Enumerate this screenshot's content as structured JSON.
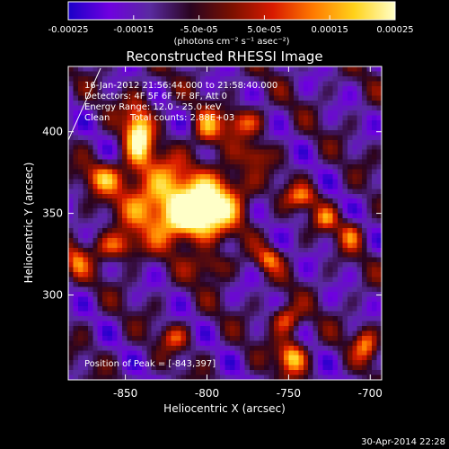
{
  "colors": {
    "background": "#000000",
    "text": "#ffffff",
    "colormap": [
      "#1a00c8",
      "#6f00e0",
      "#5a2aa0",
      "#2a0420",
      "#7a1000",
      "#d81a00",
      "#ff7a00",
      "#ffd21a",
      "#ffffc8"
    ]
  },
  "colorbar": {
    "tick_labels": [
      "-0.00025",
      "-0.00015",
      "-5.0e-05",
      "5.0e-05",
      "0.00015",
      "0.00025"
    ],
    "unit_label": "(photons cm⁻² s⁻¹ asec⁻²)",
    "range": [
      -0.00025,
      0.00025
    ]
  },
  "chart_data": {
    "type": "heatmap",
    "title": "Reconstructed RHESSI Image",
    "xlabel": "Heliocentric X (arcsec)",
    "ylabel": "Heliocentric Y (arcsec)",
    "xlim": [
      -885,
      -693
    ],
    "ylim": [
      248,
      440
    ],
    "x_ticks": [
      -850,
      -800,
      -750,
      -700
    ],
    "y_ticks": [
      300,
      350,
      400
    ],
    "x_tick_labels": [
      "-850",
      "-800",
      "-750",
      "-700"
    ],
    "y_tick_labels": [
      "300",
      "350",
      "400"
    ],
    "annotations": {
      "time": "16-Jan-2012 21:56:44.000 to 21:58:40.000",
      "detectors": "Detectors: 4F 5F 6F 7F 8F, Att 0",
      "energy": "Energy Range: 12.0 - 25.0 keV",
      "method": "Clean",
      "counts": "Total counts: 2.88E+03",
      "peak": "Position of Peak = [-843,397]"
    },
    "peak_position": [
      -843,
      397
    ],
    "sources": [
      {
        "x": -808,
        "y": 347,
        "sx": 13,
        "sy": 10,
        "a": 1.0
      },
      {
        "x": -828,
        "y": 360,
        "sx": 18,
        "sy": 16,
        "a": 0.8
      },
      {
        "x": -790,
        "y": 362,
        "sx": 12,
        "sy": 12,
        "a": 0.65
      },
      {
        "x": -842,
        "y": 399,
        "sx": 6,
        "sy": 14,
        "a": 0.95
      },
      {
        "x": -800,
        "y": 401,
        "sx": 6,
        "sy": 8,
        "a": 0.6
      },
      {
        "x": -778,
        "y": 406,
        "sx": 9,
        "sy": 6,
        "a": 0.55
      },
      {
        "x": -864,
        "y": 372,
        "sx": 8,
        "sy": 6,
        "a": 0.55
      },
      {
        "x": -855,
        "y": 330,
        "sx": 10,
        "sy": 6,
        "a": 0.6
      },
      {
        "x": -880,
        "y": 320,
        "sx": 5,
        "sy": 7,
        "a": 0.5
      },
      {
        "x": -762,
        "y": 322,
        "sx": 5,
        "sy": 5,
        "a": 0.55
      },
      {
        "x": -742,
        "y": 360,
        "sx": 7,
        "sy": 5,
        "a": 0.55
      },
      {
        "x": -727,
        "y": 347,
        "sx": 5,
        "sy": 5,
        "a": 0.5
      },
      {
        "x": -712,
        "y": 337,
        "sx": 5,
        "sy": 6,
        "a": 0.5
      },
      {
        "x": -752,
        "y": 285,
        "sx": 6,
        "sy": 6,
        "a": 0.65
      },
      {
        "x": -748,
        "y": 262,
        "sx": 6,
        "sy": 7,
        "a": 0.85
      },
      {
        "x": -703,
        "y": 270,
        "sx": 5,
        "sy": 7,
        "a": 0.6
      },
      {
        "x": -820,
        "y": 274,
        "sx": 6,
        "sy": 5,
        "a": 0.45
      },
      {
        "x": -797,
        "y": 318,
        "sx": 8,
        "sy": 6,
        "a": 0.45
      },
      {
        "x": -770,
        "y": 386,
        "sx": 6,
        "sy": 5,
        "a": 0.35
      }
    ]
  },
  "footer": {
    "timestamp": "30-Apr-2014 22:28"
  }
}
